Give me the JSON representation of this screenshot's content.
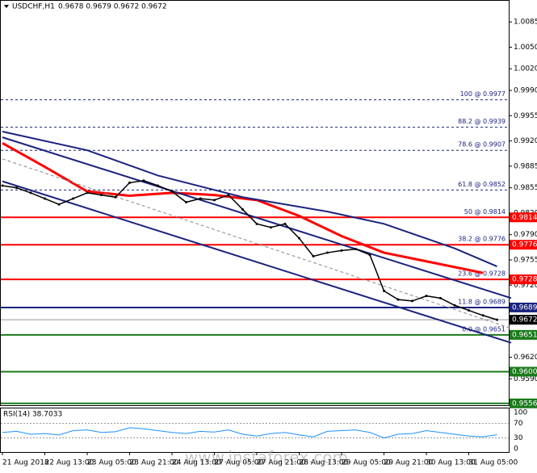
{
  "chart_data": {
    "type": "line",
    "title": "USDCHF,H1",
    "ohlc_text": "0.9678 0.9679 0.9672 0.9672",
    "watermark": "www.instaforex.com",
    "categories": [
      "21 Aug 2018",
      null,
      null,
      "22 Aug 13:00",
      null,
      null,
      "23 Aug 05:00",
      null,
      null,
      "23 Aug 21:00",
      null,
      null,
      "24 Aug 13:00",
      null,
      null,
      "27 Aug 05:00",
      null,
      null,
      "27 Aug 21:00",
      null,
      null,
      "28 Aug 13:00",
      null,
      null,
      "29 Aug 05:00",
      null,
      null,
      "29 Aug 21:00",
      null,
      null,
      "30 Aug 13:00",
      null,
      null,
      "31 Aug 05:00",
      null,
      null
    ],
    "series": [
      {
        "color": "#000000",
        "values": [
          0.9858,
          0.9855,
          0.9848,
          0.984,
          0.9832,
          0.984,
          0.9848,
          0.9845,
          0.9842,
          0.9862,
          0.9865,
          0.9858,
          0.985,
          0.9835,
          0.984,
          0.9838,
          0.9845,
          0.9825,
          0.9805,
          0.98,
          0.9805,
          0.9785,
          0.976,
          0.9765,
          0.9768,
          0.977,
          0.9762,
          0.9712,
          0.97,
          0.9698,
          0.9705,
          0.9702,
          0.9692,
          0.9685,
          0.9678,
          0.9672
        ]
      }
    ],
    "overlays": [
      {
        "color": "#ff0000",
        "width": 3,
        "x": [
          0,
          3,
          6,
          9,
          12,
          15,
          18,
          21,
          24,
          27,
          30,
          34
        ],
        "values": [
          0.9917,
          0.9884,
          0.985,
          0.9844,
          0.9848,
          0.9845,
          0.9838,
          0.9816,
          0.9788,
          0.9765,
          0.9753,
          0.9737
        ]
      },
      {
        "color": "#1a237e",
        "width": 2,
        "x": [
          0,
          6,
          11,
          17,
          23,
          27,
          32,
          35
        ],
        "values": [
          0.9933,
          0.9907,
          0.9872,
          0.9842,
          0.9822,
          0.9805,
          0.9771,
          0.9746
        ]
      },
      {
        "color": "#1a237e",
        "width": 2,
        "x": [
          0,
          36
        ],
        "values": [
          0.9925,
          0.9702
        ]
      },
      {
        "color": "#1a237e",
        "width": 2,
        "x": [
          0,
          36
        ],
        "values": [
          0.9864,
          0.964
        ]
      },
      {
        "color": "#888888",
        "width": 1,
        "dashed": true,
        "x": [
          0,
          36
        ],
        "values": [
          0.9895,
          0.966
        ]
      }
    ],
    "levels": [
      {
        "value": 0.9977,
        "fib": "100 @ 0.9977",
        "color": "#1a237e",
        "dashed": true
      },
      {
        "value": 0.9939,
        "fib": "88.2 @ 0.9939",
        "color": "#1a237e",
        "dashed": true
      },
      {
        "value": 0.9907,
        "fib": "78.6 @ 0.9907",
        "color": "#1a237e",
        "dashed": true
      },
      {
        "value": 0.9852,
        "fib": "61.8 @ 0.9852",
        "color": "#1a237e",
        "dashed": true
      },
      {
        "value": 0.9814,
        "fib": "50 @ 0.9814",
        "tag": "0.9814",
        "color": "#ff0000"
      },
      {
        "value": 0.9776,
        "fib": "38.2 @ 0.9776",
        "tag": "0.9776",
        "color": "#ff0000"
      },
      {
        "value": 0.9728,
        "fib": "23.6 @ 0.9728",
        "tag": "0.9728",
        "color": "#ff0000"
      },
      {
        "value": 0.9689,
        "fib": "11.8 @ 0.9689",
        "tag": "0.9689",
        "color": "#1a237e"
      },
      {
        "value": 0.9672,
        "tag": "0.9672",
        "color": "#999999",
        "thin": true
      },
      {
        "value": 0.9651,
        "fib": "0.0 @ 0.9651",
        "tag": "0.9651",
        "color": "#1b7a1b"
      },
      {
        "value": 0.96,
        "tag": "0.9600",
        "color": "#1b7a1b"
      },
      {
        "value": 0.9556,
        "tag": "0.9556",
        "color": "#1b7a1b"
      }
    ],
    "ylim": [
      0.95535,
      1.01143
    ],
    "yticks": [
      {
        "value": 1.0085,
        "label": "1.0085"
      },
      {
        "value": 1.005,
        "label": "1.0050"
      },
      {
        "value": 1.002,
        "label": "1.0020"
      },
      {
        "value": 0.999,
        "label": "0.9990"
      },
      {
        "value": 0.9955,
        "label": "0.9955"
      },
      {
        "value": 0.992,
        "label": "0.9920"
      },
      {
        "value": 0.9885,
        "label": "0.9885"
      },
      {
        "value": 0.9855,
        "label": "0.9855"
      },
      {
        "value": 0.982,
        "label": "0.9820"
      },
      {
        "value": 0.979,
        "label": "0.9790"
      },
      {
        "value": 0.9755,
        "label": "0.9755"
      },
      {
        "value": 0.972,
        "label": "0.9720"
      },
      {
        "value": 0.962,
        "label": "0.9620"
      },
      {
        "value": 0.959,
        "label": "0.9590"
      }
    ],
    "rsi": {
      "title": "RSI(14) 38.7033",
      "color": "#1e90ff",
      "ylim": [
        0,
        100
      ],
      "yticks": [
        100,
        70,
        30,
        0
      ],
      "levels": [
        70,
        30
      ],
      "values": [
        45,
        48,
        40,
        42,
        38,
        50,
        52,
        45,
        47,
        58,
        55,
        50,
        45,
        42,
        48,
        46,
        52,
        40,
        35,
        42,
        45,
        38,
        33,
        48,
        50,
        52,
        45,
        30,
        40,
        42,
        50,
        45,
        40,
        35,
        33,
        38.7033
      ]
    }
  }
}
